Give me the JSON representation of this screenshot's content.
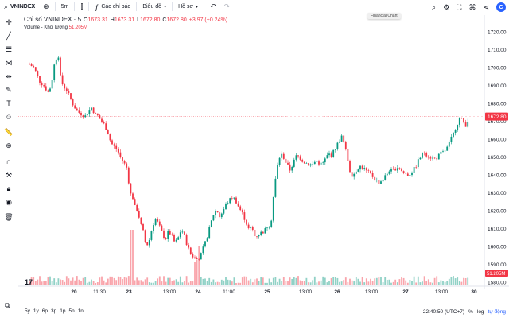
{
  "topbar": {
    "symbol": "VNINDEX",
    "interval": "5m",
    "indicators_label": "Các chỉ báo",
    "chart_type_label": "Biểu đồ",
    "profile_label": "Hồ sơ"
  },
  "tooltip": "Financial Chart",
  "legend": {
    "title": "Chỉ số VNINDEX · 5",
    "o_label": "O",
    "o_value": "1673.31",
    "h_label": "H",
    "h_value": "1673.31",
    "l_label": "L",
    "l_value": "1672.80",
    "c_label": "C",
    "c_value": "1672.80",
    "change": "+3.97 (+0.24%)",
    "volume_label": "Volume - Khối lượng",
    "volume_value": "51.205M"
  },
  "price_tag": "1672.80",
  "volume_tag": "51.205M",
  "bottombar": {
    "ranges": [
      "5y",
      "1y",
      "6p",
      "3p",
      "1p",
      "5n",
      "1n"
    ],
    "clock": "22:40:50 (UTC+7)",
    "percent": "%",
    "log": "log",
    "auto": "tự động"
  },
  "colors": {
    "up": "#089981",
    "down": "#f23645",
    "accent": "#2962ff"
  },
  "icons": {
    "left": [
      "crosshair-icon",
      "trend-line-icon",
      "fib-icon",
      "pattern-icon",
      "measure-icon",
      "brush-icon",
      "text-icon",
      "emoji-icon",
      "ruler-icon",
      "zoom-in-icon",
      "magnet-icon",
      "lock-drawing-icon",
      "lock-icon",
      "eye-icon",
      "trash-icon"
    ]
  },
  "chart_data": {
    "type": "candlestick",
    "y_ticks": [
      1580,
      1590,
      1600,
      1610,
      1620,
      1630,
      1640,
      1650,
      1660,
      1670,
      1680,
      1690,
      1700,
      1710,
      1720
    ],
    "ylim": [
      1575,
      1725
    ],
    "x_ticks": [
      "20",
      "11:30",
      "23",
      "13:00",
      "24",
      "11:00",
      "25",
      "13:00",
      "26",
      "13:00",
      "27",
      "13:00",
      "30"
    ],
    "last_price": 1672.8,
    "close_path": [
      [
        0,
        1702
      ],
      [
        6,
        1700
      ],
      [
        12,
        1693
      ],
      [
        18,
        1690
      ],
      [
        24,
        1686
      ],
      [
        28,
        1692
      ],
      [
        30,
        1700
      ],
      [
        34,
        1706
      ],
      [
        36,
        1708
      ],
      [
        38,
        1696
      ],
      [
        42,
        1690
      ],
      [
        46,
        1688
      ],
      [
        50,
        1684
      ],
      [
        54,
        1680
      ],
      [
        58,
        1677
      ],
      [
        62,
        1675
      ],
      [
        66,
        1674
      ],
      [
        70,
        1673
      ],
      [
        74,
        1676
      ],
      [
        78,
        1678
      ],
      [
        82,
        1674
      ],
      [
        86,
        1673
      ],
      [
        90,
        1670
      ],
      [
        94,
        1668
      ],
      [
        98,
        1664
      ],
      [
        102,
        1658
      ],
      [
        106,
        1656
      ],
      [
        110,
        1654
      ],
      [
        114,
        1650
      ],
      [
        118,
        1647
      ],
      [
        122,
        1644
      ],
      [
        126,
        1630
      ],
      [
        130,
        1627
      ],
      [
        132,
        1622
      ],
      [
        136,
        1620
      ],
      [
        138,
        1614
      ],
      [
        142,
        1609
      ],
      [
        146,
        1600
      ],
      [
        150,
        1604
      ],
      [
        154,
        1612
      ],
      [
        158,
        1616
      ],
      [
        162,
        1612
      ],
      [
        166,
        1608
      ],
      [
        170,
        1604
      ],
      [
        174,
        1609
      ],
      [
        178,
        1606
      ],
      [
        182,
        1602
      ],
      [
        186,
        1605
      ],
      [
        190,
        1610
      ],
      [
        194,
        1606
      ],
      [
        198,
        1600
      ],
      [
        202,
        1596
      ],
      [
        206,
        1594
      ],
      [
        210,
        1593
      ],
      [
        214,
        1595
      ],
      [
        218,
        1600
      ],
      [
        222,
        1605
      ],
      [
        226,
        1612
      ],
      [
        230,
        1618
      ],
      [
        234,
        1621
      ],
      [
        238,
        1617
      ],
      [
        242,
        1620
      ],
      [
        246,
        1624
      ],
      [
        250,
        1626
      ],
      [
        254,
        1628
      ],
      [
        258,
        1626
      ],
      [
        262,
        1622
      ],
      [
        266,
        1619
      ],
      [
        270,
        1615
      ],
      [
        274,
        1610
      ],
      [
        278,
        1611
      ],
      [
        282,
        1606
      ],
      [
        286,
        1607
      ],
      [
        290,
        1608
      ],
      [
        294,
        1609
      ],
      [
        298,
        1612
      ],
      [
        302,
        1613
      ],
      [
        306,
        1632
      ],
      [
        310,
        1645
      ],
      [
        314,
        1652
      ],
      [
        318,
        1650
      ],
      [
        322,
        1646
      ],
      [
        326,
        1643
      ],
      [
        330,
        1647
      ],
      [
        334,
        1651
      ],
      [
        338,
        1650
      ],
      [
        342,
        1648
      ],
      [
        346,
        1647
      ],
      [
        350,
        1646
      ],
      [
        354,
        1646
      ],
      [
        358,
        1648
      ],
      [
        362,
        1647
      ],
      [
        366,
        1646
      ],
      [
        370,
        1649
      ],
      [
        374,
        1652
      ],
      [
        378,
        1651
      ],
      [
        382,
        1655
      ],
      [
        386,
        1658
      ],
      [
        390,
        1662
      ],
      [
        394,
        1657
      ],
      [
        398,
        1649
      ],
      [
        402,
        1640
      ],
      [
        406,
        1641
      ],
      [
        410,
        1644
      ],
      [
        414,
        1645
      ],
      [
        418,
        1644
      ],
      [
        422,
        1642
      ],
      [
        426,
        1641
      ],
      [
        430,
        1639
      ],
      [
        434,
        1637
      ],
      [
        438,
        1636
      ],
      [
        442,
        1638
      ],
      [
        446,
        1640
      ],
      [
        450,
        1643
      ],
      [
        454,
        1642
      ],
      [
        458,
        1644
      ],
      [
        462,
        1645
      ],
      [
        466,
        1642
      ],
      [
        470,
        1641
      ],
      [
        474,
        1640
      ],
      [
        478,
        1642
      ],
      [
        482,
        1644
      ],
      [
        486,
        1648
      ],
      [
        490,
        1651
      ],
      [
        494,
        1653
      ],
      [
        498,
        1651
      ],
      [
        502,
        1650
      ],
      [
        506,
        1649
      ],
      [
        510,
        1650
      ],
      [
        514,
        1652
      ],
      [
        518,
        1653
      ],
      [
        522,
        1655
      ],
      [
        526,
        1659
      ],
      [
        530,
        1663
      ],
      [
        534,
        1668
      ],
      [
        538,
        1672
      ],
      [
        542,
        1670
      ],
      [
        546,
        1668
      ],
      [
        550,
        1672.8
      ]
    ],
    "volume": "per-bar volume histogram shown along bottom"
  }
}
